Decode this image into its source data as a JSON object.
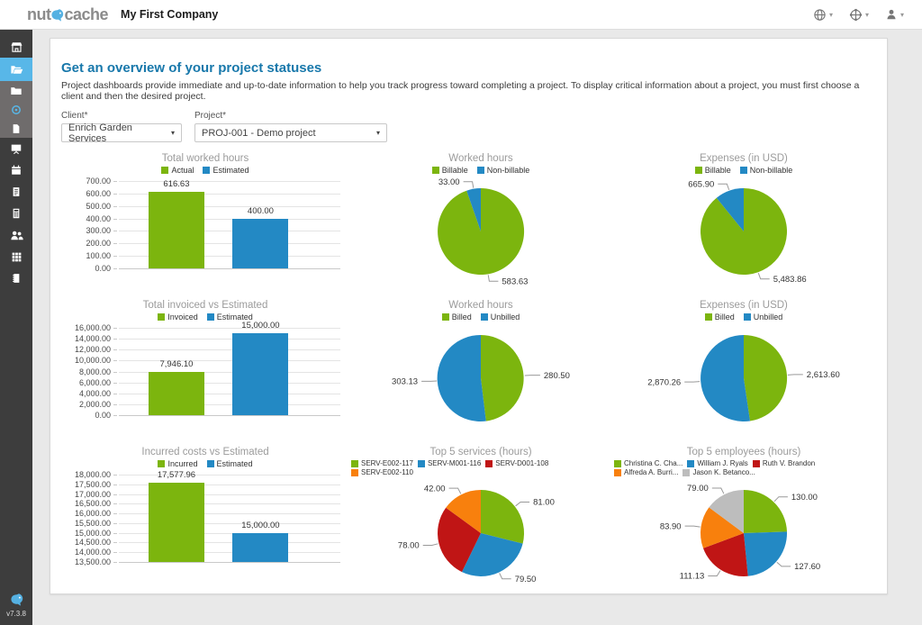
{
  "topbar": {
    "logo": {
      "prefix": "nut",
      "suffix": "cache"
    },
    "company_name": "My First Company",
    "menus": [
      {
        "icon": "globe-icon"
      },
      {
        "icon": "integrations-globe-icon"
      },
      {
        "icon": "user-icon"
      }
    ]
  },
  "sidebar": {
    "version": "v7.3.8",
    "items": [
      {
        "icon": "dashboard-icon",
        "active": false,
        "sub": false
      },
      {
        "icon": "projects-folder-open-icon",
        "active": true,
        "sub": false
      },
      {
        "icon": "folder-icon",
        "active": false,
        "sub": true
      },
      {
        "icon": "time-icon",
        "active": false,
        "sub": true
      },
      {
        "icon": "document-icon",
        "active": false,
        "sub": true
      },
      {
        "icon": "board-icon",
        "active": false,
        "sub": false
      },
      {
        "icon": "calendar-icon",
        "active": false,
        "sub": false
      },
      {
        "icon": "invoice-icon",
        "active": false,
        "sub": false
      },
      {
        "icon": "calculator-icon",
        "active": false,
        "sub": false
      },
      {
        "icon": "team-icon",
        "active": false,
        "sub": false
      },
      {
        "icon": "grid-icon",
        "active": false,
        "sub": false
      },
      {
        "icon": "notes-icon",
        "active": false,
        "sub": false
      }
    ]
  },
  "page": {
    "title": "Get an overview of your project statuses",
    "description": "Project dashboards provide immediate and up-to-date information to help you track progress toward completing a project. To display critical information about a project, you must first choose a client and then the desired project."
  },
  "filters": {
    "client_label": "Client*",
    "client_value": "Enrich Garden Services",
    "project_label": "Project*",
    "project_value": "PROJ-001 - Demo project"
  },
  "colors": {
    "green": "#7cb50e",
    "blue": "#2389c4",
    "red": "#c01515",
    "orange": "#f8800d",
    "gray": "#bdbdbd",
    "title_blue": "#1878ab",
    "sidebar_active_blue": "#58b7e8"
  },
  "chart_data": [
    {
      "type": "bar",
      "title": "Total worked hours",
      "legend_position": "top",
      "series": [
        {
          "name": "Actual",
          "color": "green",
          "value": 616.63,
          "label": "616.63"
        },
        {
          "name": "Estimated",
          "color": "blue",
          "value": 400,
          "label": "400.00"
        }
      ],
      "ylim": [
        0,
        700
      ],
      "ystep": 100,
      "grid": true
    },
    {
      "type": "pie",
      "title": "Worked hours",
      "legend_position": "top",
      "slices": [
        {
          "name": "Billable",
          "color": "green",
          "value": 583.63,
          "label": "583.63"
        },
        {
          "name": "Non-billable",
          "color": "blue",
          "value": 33,
          "label": "33.00"
        }
      ]
    },
    {
      "type": "pie",
      "title": "Expenses (in USD)",
      "legend_position": "top",
      "slices": [
        {
          "name": "Billable",
          "color": "green",
          "value": 5483.86,
          "label": "5,483.86"
        },
        {
          "name": "Non-billable",
          "color": "blue",
          "value": 665.9,
          "label": "665.90"
        }
      ]
    },
    {
      "type": "bar",
      "title": "Total invoiced vs Estimated",
      "legend_position": "top",
      "series": [
        {
          "name": "Invoiced",
          "color": "green",
          "value": 7946.1,
          "label": "7,946.10"
        },
        {
          "name": "Estimated",
          "color": "blue",
          "value": 15000,
          "label": "15,000.00"
        }
      ],
      "ylim": [
        0,
        16000
      ],
      "ystep": 2000,
      "grid": true
    },
    {
      "type": "pie",
      "title": "Worked hours",
      "legend_position": "top",
      "slices": [
        {
          "name": "Billed",
          "color": "green",
          "value": 280.5,
          "label": "280.50"
        },
        {
          "name": "Unbilled",
          "color": "blue",
          "value": 303.13,
          "label": "303.13"
        }
      ]
    },
    {
      "type": "pie",
      "title": "Expenses (in USD)",
      "legend_position": "top",
      "slices": [
        {
          "name": "Billed",
          "color": "green",
          "value": 2613.6,
          "label": "2,613.60"
        },
        {
          "name": "Unbilled",
          "color": "blue",
          "value": 2870.26,
          "label": "2,870.26"
        }
      ]
    },
    {
      "type": "bar",
      "title": "Incurred costs vs Estimated",
      "legend_position": "top",
      "series": [
        {
          "name": "Incurred",
          "color": "green",
          "value": 17577.96,
          "label": "17,577.96"
        },
        {
          "name": "Estimated",
          "color": "blue",
          "value": 15000,
          "label": "15,000.00"
        }
      ],
      "ylim": [
        13500,
        18000
      ],
      "ystep": 500,
      "grid": true
    },
    {
      "type": "pie",
      "title": "Top 5 services (hours)",
      "legend_position": "top",
      "slices": [
        {
          "name": "SERV-E002-117",
          "color": "green",
          "value": 81,
          "label": "81.00"
        },
        {
          "name": "SERV-M001-116",
          "color": "blue",
          "value": 79.5,
          "label": "79.50"
        },
        {
          "name": "SERV-D001-108",
          "color": "red",
          "value": 78,
          "label": "78.00"
        },
        {
          "name": "SERV-E002-110",
          "color": "orange",
          "value": 42,
          "label": "42.00"
        }
      ]
    },
    {
      "type": "pie",
      "title": "Top 5 employees (hours)",
      "legend_position": "top",
      "slices": [
        {
          "name": "Christina C. Cha...",
          "color": "green",
          "value": 130,
          "label": "130.00"
        },
        {
          "name": "William J. Ryals",
          "color": "blue",
          "value": 127.6,
          "label": "127.60"
        },
        {
          "name": "Ruth V. Brandon",
          "color": "red",
          "value": 111.13,
          "label": "111.13"
        },
        {
          "name": "Alfreda A. Burri...",
          "color": "orange",
          "value": 83.9,
          "label": "83.90"
        },
        {
          "name": "Jason K. Betanco...",
          "color": "gray",
          "value": 79,
          "label": "79.00"
        }
      ]
    }
  ]
}
